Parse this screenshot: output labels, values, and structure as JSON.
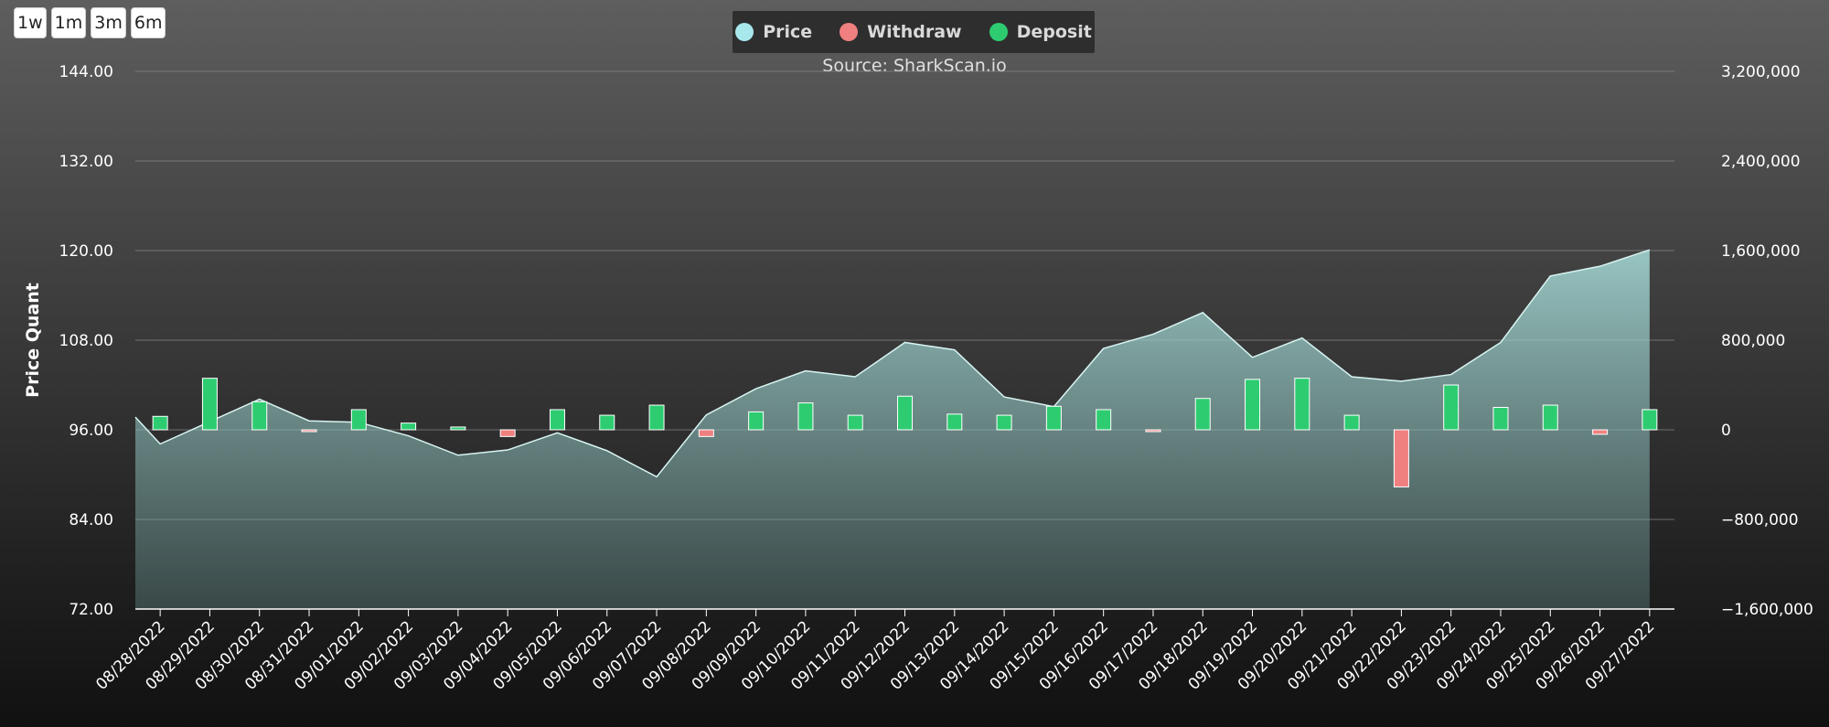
{
  "range_buttons": [
    "1w",
    "1m",
    "3m",
    "6m"
  ],
  "legend": [
    {
      "name": "Price",
      "color": "#a8e8ec"
    },
    {
      "name": "Withdraw",
      "color": "#f08080"
    },
    {
      "name": "Deposit",
      "color": "#2ecc71"
    }
  ],
  "chart_data": {
    "type": "bar",
    "subtitle": "Source: SharkScan.io",
    "ylabel": "Price Quant",
    "categories": [
      "08/28/2022",
      "08/29/2022",
      "08/30/2022",
      "08/31/2022",
      "09/01/2022",
      "09/02/2022",
      "09/03/2022",
      "09/04/2022",
      "09/05/2022",
      "09/06/2022",
      "09/07/2022",
      "09/08/2022",
      "09/09/2022",
      "09/10/2022",
      "09/11/2022",
      "09/12/2022",
      "09/13/2022",
      "09/14/2022",
      "09/15/2022",
      "09/16/2022",
      "09/17/2022",
      "09/18/2022",
      "09/19/2022",
      "09/20/2022",
      "09/21/2022",
      "09/22/2022",
      "09/23/2022",
      "09/24/2022",
      "09/25/2022",
      "09/26/2022",
      "09/27/2022"
    ],
    "y_left": {
      "ticks": [
        "144.00",
        "132.00",
        "120.00",
        "108.00",
        "96.00",
        "84.00",
        "72.00"
      ],
      "range": [
        72,
        144
      ]
    },
    "y_right": {
      "ticks": [
        "3,200,000",
        "2,400,000",
        "1,600,000",
        "800,000",
        "0",
        "−800,000",
        "−1,600,000"
      ],
      "range": [
        -1600000,
        3200000
      ]
    },
    "price_x": [
      0,
      0.5,
      1.5,
      2.5,
      3.5,
      4.5,
      5.5,
      6.5,
      7.5,
      8.5,
      9.5,
      10.5,
      11.5,
      12.5,
      13.5,
      14.5,
      15.5,
      16.5,
      17.5,
      18.5,
      19.5,
      20.5,
      21.5,
      22.5,
      23.5,
      24.5,
      25.5,
      26.5,
      27.5,
      28.5,
      29.5,
      30.5
    ],
    "price_y": [
      97.7,
      94.1,
      97.1,
      100.1,
      97.2,
      97.0,
      95.2,
      92.6,
      93.3,
      95.6,
      93.2,
      89.7,
      98.0,
      101.5,
      103.9,
      103.1,
      107.7,
      106.7,
      100.4,
      99.1,
      106.9,
      108.8,
      111.7,
      105.7,
      108.3,
      103.1,
      102.5,
      103.4,
      107.7,
      116.6,
      117.9,
      120.1
    ],
    "series": [
      {
        "name": "Deposit",
        "values": [
          120000,
          460000,
          250000,
          0,
          180000,
          60000,
          25000,
          0,
          180000,
          130000,
          220000,
          0,
          160000,
          240000,
          130000,
          300000,
          140000,
          130000,
          210000,
          180000,
          0,
          280000,
          450000,
          460000,
          130000,
          0,
          400000,
          200000,
          220000,
          0,
          180000
        ]
      },
      {
        "name": "Withdraw",
        "values": [
          0,
          0,
          0,
          -15000,
          0,
          0,
          0,
          -60000,
          0,
          0,
          0,
          -60000,
          0,
          0,
          0,
          0,
          0,
          0,
          0,
          0,
          -10000,
          0,
          0,
          0,
          0,
          -510000,
          0,
          0,
          0,
          -40000,
          0
        ]
      }
    ],
    "grid": true,
    "legend_position": "top-center"
  }
}
